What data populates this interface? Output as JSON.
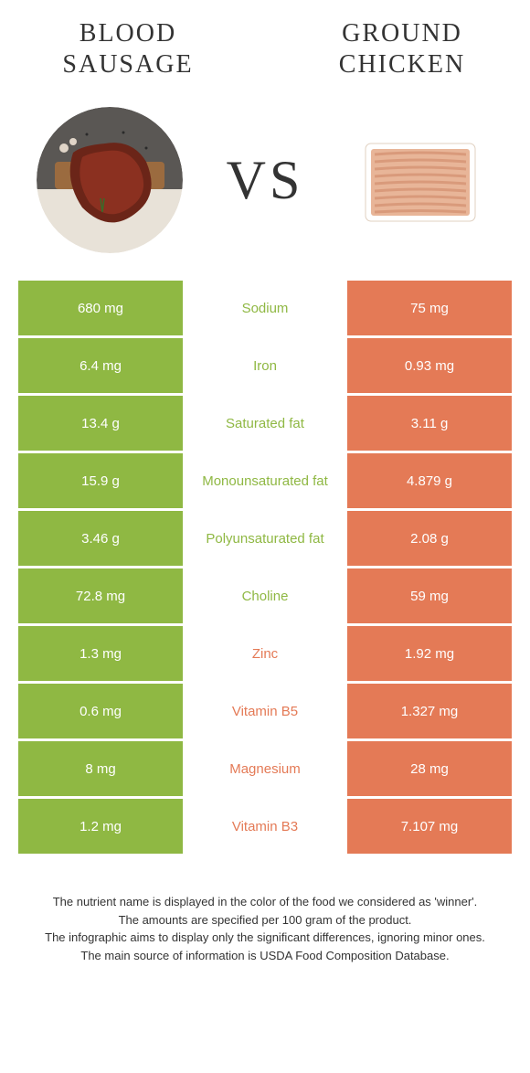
{
  "colors": {
    "left": "#8fb843",
    "right": "#e47a56",
    "text_dark": "#333333",
    "white": "#ffffff"
  },
  "header": {
    "left_title_line1": "BLOOD",
    "left_title_line2": "SAUSAGE",
    "right_title_line1": "GROUND",
    "right_title_line2": "CHICKEN",
    "vs": "VS"
  },
  "rows": [
    {
      "left": "680 mg",
      "label": "Sodium",
      "right": "75 mg",
      "winner": "left"
    },
    {
      "left": "6.4 mg",
      "label": "Iron",
      "right": "0.93 mg",
      "winner": "left"
    },
    {
      "left": "13.4 g",
      "label": "Saturated fat",
      "right": "3.11 g",
      "winner": "left"
    },
    {
      "left": "15.9 g",
      "label": "Monounsaturated fat",
      "right": "4.879 g",
      "winner": "left"
    },
    {
      "left": "3.46 g",
      "label": "Polyunsaturated fat",
      "right": "2.08 g",
      "winner": "left"
    },
    {
      "left": "72.8 mg",
      "label": "Choline",
      "right": "59 mg",
      "winner": "left"
    },
    {
      "left": "1.3 mg",
      "label": "Zinc",
      "right": "1.92 mg",
      "winner": "right"
    },
    {
      "left": "0.6 mg",
      "label": "Vitamin B5",
      "right": "1.327 mg",
      "winner": "right"
    },
    {
      "left": "8 mg",
      "label": "Magnesium",
      "right": "28 mg",
      "winner": "right"
    },
    {
      "left": "1.2 mg",
      "label": "Vitamin B3",
      "right": "7.107 mg",
      "winner": "right"
    }
  ],
  "footer": {
    "line1": "The nutrient name is displayed in the color of the food we considered as 'winner'.",
    "line2": "The amounts are specified per 100 gram of the product.",
    "line3": "The infographic aims to display only the significant differences, ignoring minor ones.",
    "line4": "The main source of information is USDA Food Composition Database."
  }
}
